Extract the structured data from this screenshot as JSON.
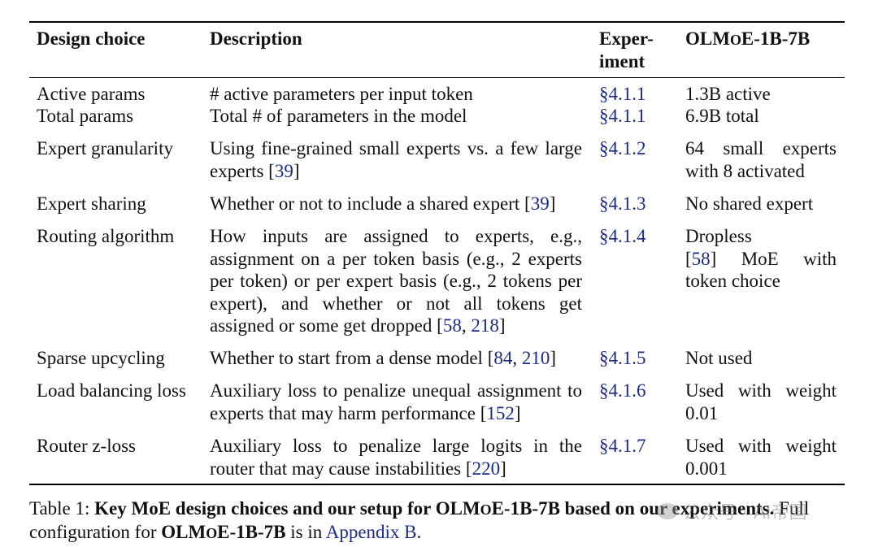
{
  "headers": {
    "design_choice": "Design choice",
    "description": "Description",
    "experiment_line1": "Exper-",
    "experiment_line2": "iment",
    "model_pre": "OLM",
    "model_sc": "O",
    "model_post": "E-1B-7B"
  },
  "rows": [
    {
      "choice": "Active params",
      "description": "# active parameters per input token",
      "section": "§4.1.1",
      "setting": "1.3B active"
    },
    {
      "choice": "Total params",
      "description": "Total # of parameters in the model",
      "section": "§4.1.1",
      "setting": "6.9B total"
    },
    {
      "choice": "Expert granularity",
      "description": "Using fine-grained small experts vs. a few large experts",
      "cite": "39",
      "section": "§4.1.2",
      "setting": "64 small experts with 8 activated"
    },
    {
      "choice": "Expert sharing",
      "description": "Whether or not to include a shared expert",
      "cite": "39",
      "section": "§4.1.3",
      "setting": "No shared expert"
    },
    {
      "choice": "Routing algorithm",
      "description": "How inputs are assigned to experts, e.g., assignment on a per token basis (e.g., 2 experts per token) or per expert basis (e.g., 2 tokens per expert), and whether or not all tokens get assigned or some get dropped",
      "cite_a": "58",
      "cite_b": "218",
      "section": "§4.1.4",
      "setting_pre": "Dropless",
      "setting_cite": "58",
      "setting_post": "MoE with token choice"
    },
    {
      "choice": "Sparse upcycling",
      "description": "Whether to start from a dense model",
      "cite_a": "84",
      "cite_b": "210",
      "section": "§4.1.5",
      "setting": "Not used"
    },
    {
      "choice": "Load balancing loss",
      "description": "Auxiliary loss to penalize unequal assignment to experts that may harm performance",
      "cite": "152",
      "section": "§4.1.6",
      "setting": "Used with weight 0.01"
    },
    {
      "choice": "Router z-loss",
      "description": "Auxiliary loss to penalize large logits in the router that may cause instabilities",
      "cite": "220",
      "section": "§4.1.7",
      "setting": "Used with weight 0.001"
    }
  ],
  "caption": {
    "prefix": "Table 1: ",
    "bold_pre": "Key MoE design choices and our setup for OLM",
    "bold_sc": "O",
    "bold_post": "E-1B-7B based on our experiments.",
    "line2_pre": " Full configuration for ",
    "model_pre": "OLM",
    "model_sc": "O",
    "model_post": "E-1B-7B",
    "line2_mid": " is in ",
    "appendix": "Appendix B",
    "line2_end": "."
  },
  "watermark": "公众号 · AI帝国"
}
